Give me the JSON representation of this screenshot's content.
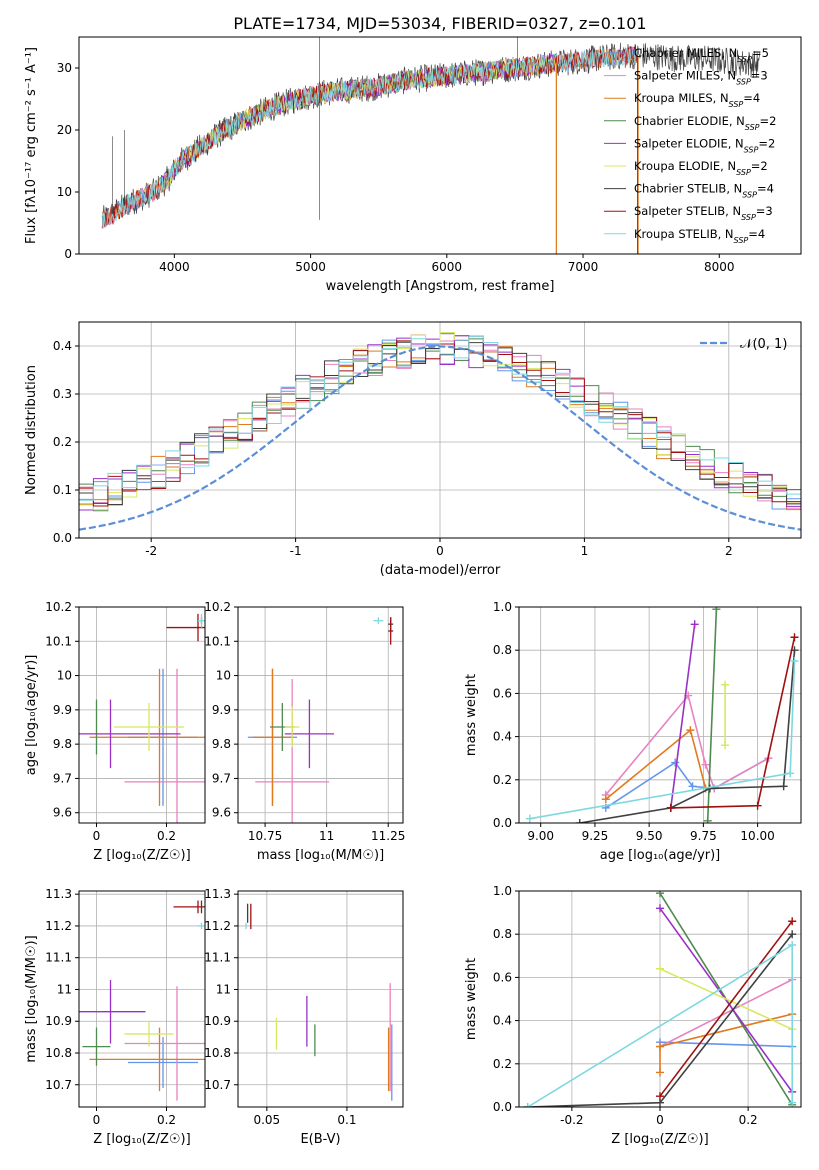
{
  "figure_title": "PLATE=1734, MJD=53034, FIBERID=0327, z=0.101",
  "chart_data": [
    {
      "id": "spectrum",
      "type": "line",
      "xlabel": "wavelength [Angstrom, rest frame]",
      "ylabel": "Flux [fλ10⁻¹⁷ erg cm⁻² s⁻¹ A⁻¹]",
      "xlim": [
        3300,
        8600
      ],
      "ylim": [
        0,
        35
      ],
      "xticks": [
        4000,
        5000,
        6000,
        7000,
        8000
      ],
      "yticks": [
        0,
        10,
        20,
        30
      ],
      "grid": false,
      "legend_position": "top-right",
      "continuum": {
        "x": [
          3470,
          3550,
          3650,
          3750,
          3850,
          3950,
          4050,
          4150,
          4300,
          4500,
          4700,
          4900,
          5100,
          5300,
          5500,
          5700,
          5900,
          6100,
          6300,
          6500,
          6700,
          6900,
          7100,
          7300,
          7500,
          7700,
          7900,
          8100,
          8300
        ],
        "y": [
          5.5,
          6.5,
          8,
          9,
          10,
          12,
          15,
          16.5,
          19,
          21.5,
          23.5,
          25,
          26,
          26.5,
          27,
          28,
          28.5,
          29,
          29.5,
          30,
          30.5,
          31,
          31.5,
          32,
          32,
          31.5,
          31.5,
          31,
          30.5
        ]
      },
      "series": [
        {
          "name": "Chabrier MILES, N_SSP=5",
          "color": "#6495ed",
          "x_range": [
            3470,
            7400
          ]
        },
        {
          "name": "Salpeter MILES, N_SSP=3",
          "color": "#e882c0",
          "x_range": [
            3470,
            7400
          ]
        },
        {
          "name": "Kroupa MILES, N_SSP=4",
          "color": "#e07a1f",
          "x_range": [
            3470,
            7400
          ]
        },
        {
          "name": "Chabrier ELODIE, N_SSP=2",
          "color": "#4f8a4f",
          "x_range": [
            3900,
            6800
          ]
        },
        {
          "name": "Salpeter ELODIE, N_SSP=2",
          "color": "#9b30c8",
          "x_range": [
            3900,
            6800
          ]
        },
        {
          "name": "Kroupa ELODIE, N_SSP=2",
          "color": "#d8e860",
          "x_range": [
            3900,
            6800
          ]
        },
        {
          "name": "Chabrier STELIB, N_SSP=4",
          "color": "#404040",
          "x_range": [
            3470,
            8300
          ]
        },
        {
          "name": "Salpeter STELIB, N_SSP=3",
          "color": "#a01010",
          "x_range": [
            3470,
            7400
          ]
        },
        {
          "name": "Kroupa STELIB, N_SSP=4",
          "color": "#7ed8e0",
          "x_range": [
            3470,
            7400
          ]
        }
      ],
      "legend_labels": [
        {
          "base": "Chabrier MILES, N",
          "sub": "SSP",
          "rest": "=5"
        },
        {
          "base": "Salpeter MILES, N",
          "sub": "SSP",
          "rest": "=3"
        },
        {
          "base": "Kroupa MILES, N",
          "sub": "SSP",
          "rest": "=4"
        },
        {
          "base": "Chabrier ELODIE, N",
          "sub": "SSP",
          "rest": "=2"
        },
        {
          "base": "Salpeter ELODIE, N",
          "sub": "SSP",
          "rest": "=2"
        },
        {
          "base": "Kroupa ELODIE, N",
          "sub": "SSP",
          "rest": "=2"
        },
        {
          "base": "Chabrier STELIB, N",
          "sub": "SSP",
          "rest": "=4"
        },
        {
          "base": "Salpeter STELIB, N",
          "sub": "SSP",
          "rest": "=3"
        },
        {
          "base": "Kroupa STELIB, N",
          "sub": "SSP",
          "rest": "=4"
        }
      ]
    },
    {
      "id": "residuals",
      "type": "histogram",
      "xlabel": "(data-model)/error",
      "ylabel": "Normed distribution",
      "xlim": [
        -2.5,
        2.5
      ],
      "ylim": [
        0,
        0.45
      ],
      "xticks": [
        -2,
        -1,
        0,
        1,
        2
      ],
      "yticks": [
        0.0,
        0.1,
        0.2,
        0.3,
        0.4
      ],
      "grid": true,
      "bin_edges_range": [
        -2.5,
        2.5
      ],
      "bins": 50,
      "normal_curve": {
        "label": "𝒩(0, 1)",
        "mean": 0,
        "sigma": 1,
        "style": "dashed",
        "color": "#5a8ed8"
      },
      "legend_position": "top-right"
    },
    {
      "id": "age-vs-Z",
      "type": "errorbar",
      "xlabel": "Z [log₁₀(Z/Z☉)]",
      "ylabel": "age  [log₁₀(age/yr)]",
      "xlim": [
        -0.05,
        0.31
      ],
      "ylim": [
        9.57,
        10.2
      ],
      "xticks": [
        0.0,
        0.2
      ],
      "yticks": [
        9.6,
        9.7,
        9.8,
        9.9,
        10.0,
        10.1,
        10.2
      ],
      "grid": true,
      "points": [
        {
          "color": "#6495ed",
          "x": 0.19,
          "y": 9.82,
          "xerr": 0.1,
          "yerr": 0.2
        },
        {
          "color": "#e882c0",
          "x": 0.23,
          "y": 9.69,
          "xerr": 0.15,
          "yerr": 0.33
        },
        {
          "color": "#e07a1f",
          "x": 0.18,
          "y": 9.82,
          "xerr": 0.2,
          "yerr": 0.2
        },
        {
          "color": "#4f8a4f",
          "x": 0.0,
          "y": 9.85,
          "xerr": 0.0,
          "yerr": 0.08
        },
        {
          "color": "#9b30c8",
          "x": 0.04,
          "y": 9.83,
          "xerr": 0.2,
          "yerr": 0.1
        },
        {
          "color": "#d8e860",
          "x": 0.15,
          "y": 9.85,
          "xerr": 0.1,
          "yerr": 0.07
        },
        {
          "color": "#404040",
          "x": 0.3,
          "y": 10.16,
          "xerr": 0.0,
          "yerr": 0.01
        },
        {
          "color": "#a01010",
          "x": 0.29,
          "y": 10.14,
          "xerr": 0.09,
          "yerr": 0.04
        },
        {
          "color": "#7ed8e0",
          "x": 0.3,
          "y": 10.16,
          "xerr": 0.01,
          "yerr": 0.02
        }
      ]
    },
    {
      "id": "age-vs-mass",
      "type": "errorbar",
      "xlabel": "mass [log₁₀(M/M☉)]",
      "ylabel": "",
      "xlim": [
        10.64,
        11.31
      ],
      "ylim": [
        9.57,
        10.2
      ],
      "xticks": [
        10.75,
        11.0,
        11.25
      ],
      "yticks": [
        9.6,
        9.7,
        9.8,
        9.9,
        10.0,
        10.1,
        10.2
      ],
      "grid": true,
      "points": [
        {
          "color": "#6495ed",
          "x": 10.78,
          "y": 9.82,
          "xerr": 0.1,
          "yerr": 0.2
        },
        {
          "color": "#e882c0",
          "x": 10.86,
          "y": 9.69,
          "xerr": 0.15,
          "yerr": 0.3
        },
        {
          "color": "#e07a1f",
          "x": 10.78,
          "y": 9.82,
          "xerr": 0.08,
          "yerr": 0.2
        },
        {
          "color": "#4f8a4f",
          "x": 10.82,
          "y": 9.85,
          "xerr": 0.05,
          "yerr": 0.07
        },
        {
          "color": "#9b30c8",
          "x": 10.93,
          "y": 9.83,
          "xerr": 0.1,
          "yerr": 0.1
        },
        {
          "color": "#d8e860",
          "x": 10.86,
          "y": 9.85,
          "xerr": 0.03,
          "yerr": 0.06
        },
        {
          "color": "#404040",
          "x": 11.26,
          "y": 10.15,
          "xerr": 0.01,
          "yerr": 0.02
        },
        {
          "color": "#a01010",
          "x": 11.26,
          "y": 10.13,
          "xerr": 0.01,
          "yerr": 0.04
        },
        {
          "color": "#7ed8e0",
          "x": 11.21,
          "y": 10.16,
          "xerr": 0.02,
          "yerr": 0.01
        }
      ]
    },
    {
      "id": "weight-vs-age",
      "type": "line",
      "xlabel": "age  [log₁₀(age/yr)]",
      "ylabel": "mass weight",
      "xlim": [
        8.9,
        10.2
      ],
      "ylim": [
        0,
        1
      ],
      "xticks": [
        9.0,
        9.25,
        9.5,
        9.75,
        10.0
      ],
      "xticklabels": [
        "9.00",
        "9.25",
        "9.50",
        "9.75",
        "10.00"
      ],
      "yticks": [
        0.0,
        0.2,
        0.4,
        0.6,
        0.8,
        1.0
      ],
      "grid": true,
      "series": [
        {
          "color": "#6495ed",
          "x": [
            9.3,
            9.62,
            9.7,
            9.8,
            10.05
          ],
          "y": [
            0.07,
            0.28,
            0.17,
            0.16,
            0.3
          ]
        },
        {
          "color": "#e882c0",
          "x": [
            9.3,
            9.68,
            9.76,
            9.8,
            10.05
          ],
          "y": [
            0.13,
            0.59,
            0.27,
            0.16,
            0.3
          ]
        },
        {
          "color": "#e07a1f",
          "x": [
            9.3,
            9.69,
            9.76
          ],
          "y": [
            0.11,
            0.43,
            0.16
          ]
        },
        {
          "color": "#4f8a4f",
          "x": [
            9.77,
            9.81
          ],
          "y": [
            0.01,
            0.99
          ]
        },
        {
          "color": "#9b30c8",
          "x": [
            9.6,
            9.71
          ],
          "y": [
            0.07,
            0.92
          ]
        },
        {
          "color": "#d8e860",
          "x": [
            9.85,
            9.85
          ],
          "y": [
            0.36,
            0.64
          ]
        },
        {
          "color": "#404040",
          "x": [
            9.18,
            9.6,
            9.78,
            10.12,
            10.17
          ],
          "y": [
            0.0,
            0.07,
            0.16,
            0.17,
            0.8
          ]
        },
        {
          "color": "#a01010",
          "x": [
            9.6,
            10.0,
            10.17
          ],
          "y": [
            0.07,
            0.08,
            0.86
          ]
        },
        {
          "color": "#7ed8e0",
          "x": [
            8.95,
            10.15,
            10.17
          ],
          "y": [
            0.02,
            0.23,
            0.75
          ]
        }
      ]
    },
    {
      "id": "mass-vs-Z",
      "type": "errorbar",
      "xlabel": "Z [log₁₀(Z/Z☉)]",
      "ylabel": "mass [log₁₀(M/M☉)]",
      "xlim": [
        -0.05,
        0.31
      ],
      "ylim": [
        10.63,
        11.31
      ],
      "xticks": [
        0.0,
        0.2
      ],
      "yticks": [
        10.7,
        10.8,
        10.9,
        11.0,
        11.1,
        11.2,
        11.3
      ],
      "grid": true,
      "points": [
        {
          "color": "#6495ed",
          "x": 0.19,
          "y": 10.77,
          "xerr": 0.1,
          "yerr": 0.08
        },
        {
          "color": "#e882c0",
          "x": 0.23,
          "y": 10.83,
          "xerr": 0.15,
          "yerr": 0.18
        },
        {
          "color": "#e07a1f",
          "x": 0.18,
          "y": 10.78,
          "xerr": 0.2,
          "yerr": 0.1
        },
        {
          "color": "#4f8a4f",
          "x": 0.0,
          "y": 10.82,
          "xerr": 0.04,
          "yerr": 0.06
        },
        {
          "color": "#9b30c8",
          "x": 0.04,
          "y": 10.93,
          "xerr": 0.1,
          "yerr": 0.1
        },
        {
          "color": "#d8e860",
          "x": 0.15,
          "y": 10.86,
          "xerr": 0.07,
          "yerr": 0.04
        },
        {
          "color": "#404040",
          "x": 0.3,
          "y": 11.26,
          "xerr": 0.0,
          "yerr": 0.02
        },
        {
          "color": "#a01010",
          "x": 0.29,
          "y": 11.26,
          "xerr": 0.07,
          "yerr": 0.02
        },
        {
          "color": "#7ed8e0",
          "x": 0.3,
          "y": 11.2,
          "xerr": 0.01,
          "yerr": 0.01
        }
      ]
    },
    {
      "id": "mass-vs-EBV",
      "type": "errorbar",
      "xlabel": "E(B-V)",
      "ylabel": "",
      "xlim": [
        0.032,
        0.135
      ],
      "ylim": [
        10.63,
        11.31
      ],
      "xticks": [
        0.05,
        0.1
      ],
      "yticks": [
        10.7,
        10.8,
        10.9,
        11.0,
        11.1,
        11.2,
        11.3
      ],
      "grid": true,
      "points": [
        {
          "color": "#6495ed",
          "x": 0.128,
          "y": 10.77,
          "yerr": 0.12
        },
        {
          "color": "#e882c0",
          "x": 0.127,
          "y": 10.85,
          "yerr": 0.17
        },
        {
          "color": "#e07a1f",
          "x": 0.126,
          "y": 10.78,
          "yerr": 0.1
        },
        {
          "color": "#4f8a4f",
          "x": 0.08,
          "y": 10.84,
          "yerr": 0.05
        },
        {
          "color": "#9b30c8",
          "x": 0.075,
          "y": 10.9,
          "yerr": 0.08
        },
        {
          "color": "#d8e860",
          "x": 0.056,
          "y": 10.86,
          "yerr": 0.05
        },
        {
          "color": "#404040",
          "x": 0.038,
          "y": 11.24,
          "yerr": 0.03
        },
        {
          "color": "#a01010",
          "x": 0.04,
          "y": 11.23,
          "yerr": 0.04
        },
        {
          "color": "#7ed8e0",
          "x": 0.037,
          "y": 11.2,
          "yerr": 0.01
        }
      ]
    },
    {
      "id": "weight-vs-Z",
      "type": "line",
      "xlabel": "Z [log₁₀(Z/Z☉)]",
      "ylabel": "mass weight",
      "xlim": [
        -0.32,
        0.32
      ],
      "ylim": [
        0,
        1
      ],
      "xticks": [
        -0.2,
        0.0,
        0.2
      ],
      "yticks": [
        0.0,
        0.2,
        0.4,
        0.6,
        0.8,
        1.0
      ],
      "grid": true,
      "series": [
        {
          "color": "#6495ed",
          "x": [
            0.0,
            0.3
          ],
          "y": [
            0.3,
            0.28
          ]
        },
        {
          "color": "#e882c0",
          "x": [
            0.0,
            0.3
          ],
          "y": [
            0.28,
            0.59
          ]
        },
        {
          "color": "#e07a1f",
          "x": [
            0.0,
            0.0,
            0.3
          ],
          "y": [
            0.16,
            0.28,
            0.43
          ]
        },
        {
          "color": "#4f8a4f",
          "x": [
            0.0,
            0.3
          ],
          "y": [
            0.99,
            0.01
          ]
        },
        {
          "color": "#9b30c8",
          "x": [
            0.0,
            0.3
          ],
          "y": [
            0.92,
            0.07
          ]
        },
        {
          "color": "#d8e860",
          "x": [
            0.0,
            0.3
          ],
          "y": [
            0.64,
            0.36
          ]
        },
        {
          "color": "#404040",
          "x": [
            -0.3,
            0.0,
            0.3
          ],
          "y": [
            0.0,
            0.02,
            0.8
          ]
        },
        {
          "color": "#a01010",
          "x": [
            0.0,
            0.3
          ],
          "y": [
            0.05,
            0.86
          ]
        },
        {
          "color": "#7ed8e0",
          "x": [
            -0.3,
            0.3,
            0.3
          ],
          "y": [
            0.0,
            0.75,
            0.02
          ]
        }
      ]
    }
  ]
}
